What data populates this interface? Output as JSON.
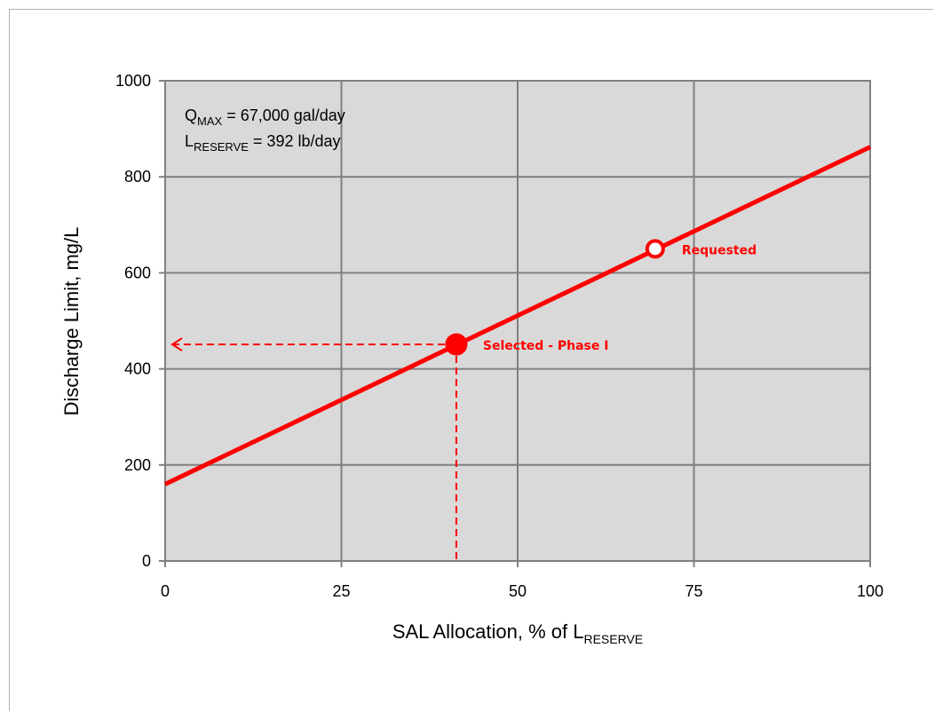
{
  "chart_data": {
    "type": "line",
    "xlabel": {
      "main": "SAL Allocation, % of L",
      "sub": "RESERVE"
    },
    "ylabel": "Discharge Limit, mg/L",
    "xlim": [
      0,
      100
    ],
    "ylim": [
      0,
      1000
    ],
    "x_ticks": [
      0,
      25,
      50,
      75,
      100
    ],
    "y_ticks": [
      0,
      200,
      400,
      600,
      800,
      1000
    ],
    "x_tick_labels": [
      "0",
      "25",
      "50",
      "75",
      "100"
    ],
    "y_tick_labels": [
      "0",
      "200",
      "400",
      "600",
      "800",
      "1000"
    ],
    "grid": true,
    "legend": "none",
    "plot_background": "#d9d9d9",
    "series": [
      {
        "x": [
          0,
          100
        ],
        "y": [
          160,
          862
        ],
        "color": "#ff0000"
      }
    ],
    "points": [
      {
        "label": "Requested",
        "x": 69.5,
        "y": 650,
        "style": "open",
        "color": "#ff0000"
      },
      {
        "label": "Selected - Phase I",
        "x": 41.3,
        "y": 451,
        "style": "filled",
        "color": "#ff0000"
      }
    ],
    "guides": {
      "x": 41.3,
      "y": 451,
      "style": "dashed",
      "color": "#ff0000"
    },
    "annotations": [
      {
        "main": "Q",
        "sub": "MAX",
        "rest": " = 67,000 gal/day"
      },
      {
        "main": "L",
        "sub": "RESERVE",
        "rest": " = 392 lb/day"
      }
    ]
  }
}
